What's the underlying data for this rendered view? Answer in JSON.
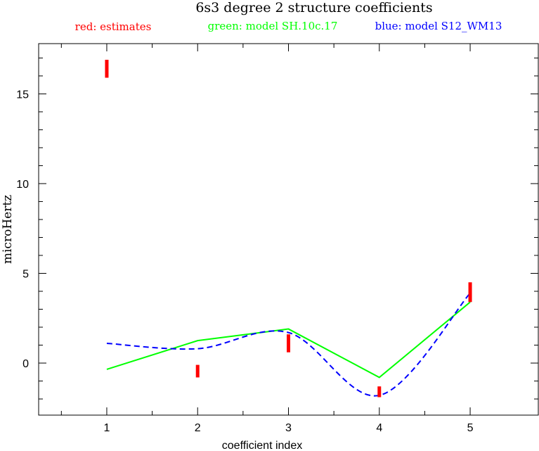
{
  "chart_data": {
    "type": "line",
    "title": "6s3 degree 2 structure coefficients",
    "xlabel": "coefficient index",
    "ylabel": "microHertz",
    "xlim": [
      0.25,
      5.75
    ],
    "ylim": [
      -2.9,
      17.8
    ],
    "x_ticks": [
      1,
      2,
      3,
      4,
      5
    ],
    "y_ticks": [
      0,
      5,
      10,
      15
    ],
    "grid": false,
    "legend_position": "top",
    "legend": [
      {
        "label": "red: estimates",
        "color": "#ff0000"
      },
      {
        "label": "green: model SH.10c.17",
        "color": "#00ff00"
      },
      {
        "label": "blue: model S12_WM13",
        "color": "#0000ff"
      }
    ],
    "estimates": {
      "color": "#ff0000",
      "style": "error bars",
      "points": [
        {
          "x": 1,
          "low": 15.9,
          "high": 16.9
        },
        {
          "x": 2,
          "low": -0.8,
          "high": -0.1
        },
        {
          "x": 3,
          "low": 0.6,
          "high": 1.6
        },
        {
          "x": 4,
          "low": -1.9,
          "high": -1.3
        },
        {
          "x": 5,
          "low": 3.4,
          "high": 4.5
        }
      ]
    },
    "series": [
      {
        "name": "model SH.10c.17",
        "color": "#00ff00",
        "dash": "solid",
        "x": [
          1,
          2,
          3,
          4,
          5
        ],
        "values": [
          -0.35,
          1.25,
          1.9,
          -0.8,
          3.4
        ]
      },
      {
        "name": "model S12_WM13",
        "color": "#0000ff",
        "dash": "dashed",
        "x": [
          1,
          2,
          3,
          4,
          5
        ],
        "values": [
          1.1,
          0.8,
          1.7,
          -1.8,
          3.9
        ]
      }
    ]
  }
}
